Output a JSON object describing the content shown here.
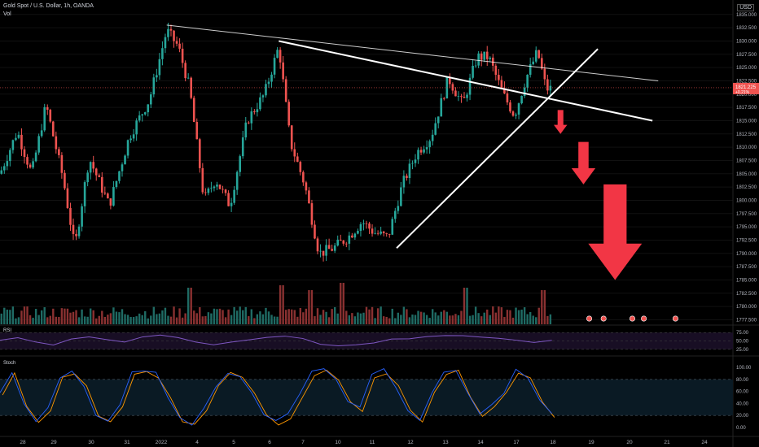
{
  "header": {
    "symbol": "Gold Spot / U.S. Dollar, 1h, OANDA",
    "volume_label": "Vol",
    "currency": "USD"
  },
  "price_panel": {
    "last_price": "1821.225",
    "change": "+0.21%"
  },
  "rsi_panel": {
    "label": "RSI",
    "levels": [
      "75.00",
      "50.00",
      "25.00"
    ]
  },
  "stoch_panel": {
    "label": "Stoch",
    "levels": [
      "100.00",
      "80.00",
      "60.00",
      "40.00",
      "20.00",
      "0.00"
    ]
  },
  "colors": {
    "up": "#26a69a",
    "down": "#ef5350",
    "rsi_line": "#7e57c2",
    "stoch_k": "#2962ff",
    "stoch_d": "#ff9800",
    "arrow": "#f23645",
    "trendline": "#ffffff"
  },
  "chart_data": {
    "type": "candlestick",
    "title": "Gold Spot / U.S. Dollar, 1h, OANDA",
    "y_ticks": [
      "1835.000",
      "1832.500",
      "1830.000",
      "1827.500",
      "1825.000",
      "1822.500",
      "1820.000",
      "1817.500",
      "1815.000",
      "1812.500",
      "1810.000",
      "1807.500",
      "1805.000",
      "1802.500",
      "1800.000",
      "1797.500",
      "1795.000",
      "1792.500",
      "1790.000",
      "1787.500",
      "1785.000",
      "1782.500",
      "1780.000",
      "1777.500"
    ],
    "ylim": [
      1776.5,
      1836.5
    ],
    "x_labels": [
      "28",
      "29",
      "30",
      "31",
      "2022",
      "4",
      "5",
      "6",
      "7",
      "10",
      "11",
      "12",
      "13",
      "14",
      "17",
      "18",
      "19",
      "20",
      "21",
      "24"
    ],
    "price_path": [
      {
        "t": 0,
        "p": 1805
      },
      {
        "t": 6,
        "p": 1813
      },
      {
        "t": 11,
        "p": 1805
      },
      {
        "t": 16,
        "p": 1818
      },
      {
        "t": 22,
        "p": 1804
      },
      {
        "t": 26,
        "p": 1791
      },
      {
        "t": 31,
        "p": 1808
      },
      {
        "t": 38,
        "p": 1799
      },
      {
        "t": 45,
        "p": 1812
      },
      {
        "t": 52,
        "p": 1819
      },
      {
        "t": 58,
        "p": 1832
      },
      {
        "t": 62,
        "p": 1829
      },
      {
        "t": 66,
        "p": 1821
      },
      {
        "t": 71,
        "p": 1800
      },
      {
        "t": 75,
        "p": 1804
      },
      {
        "t": 80,
        "p": 1799
      },
      {
        "t": 86,
        "p": 1815
      },
      {
        "t": 92,
        "p": 1820
      },
      {
        "t": 97,
        "p": 1829
      },
      {
        "t": 101,
        "p": 1811
      },
      {
        "t": 106,
        "p": 1803
      },
      {
        "t": 111,
        "p": 1790
      },
      {
        "t": 116,
        "p": 1791
      },
      {
        "t": 121,
        "p": 1793
      },
      {
        "t": 126,
        "p": 1796
      },
      {
        "t": 130,
        "p": 1794
      },
      {
        "t": 135,
        "p": 1793
      },
      {
        "t": 140,
        "p": 1803
      },
      {
        "t": 145,
        "p": 1809
      },
      {
        "t": 150,
        "p": 1812
      },
      {
        "t": 156,
        "p": 1823
      },
      {
        "t": 161,
        "p": 1818
      },
      {
        "t": 166,
        "p": 1827
      },
      {
        "t": 170,
        "p": 1827
      },
      {
        "t": 175,
        "p": 1820
      },
      {
        "t": 179,
        "p": 1816
      },
      {
        "t": 183,
        "p": 1823
      },
      {
        "t": 187,
        "p": 1828
      },
      {
        "t": 190,
        "p": 1821
      },
      {
        "t": 192,
        "p": 1821
      }
    ],
    "volume_spikes": [
      {
        "t": 66,
        "v": 0.75
      },
      {
        "t": 98,
        "v": 0.8
      },
      {
        "t": 108,
        "v": 0.7
      },
      {
        "t": 119,
        "v": 0.85
      },
      {
        "t": 162,
        "v": 0.75
      },
      {
        "t": 189,
        "v": 0.7
      }
    ],
    "rsi": [
      52,
      58,
      45,
      40,
      56,
      62,
      55,
      48,
      62,
      67,
      60,
      48,
      38,
      45,
      55,
      60,
      63,
      57,
      42,
      35,
      40,
      45,
      55,
      58,
      62,
      66,
      64,
      60,
      58,
      54,
      47,
      50
    ],
    "stoch": [
      55,
      92,
      40,
      12,
      30,
      85,
      95,
      70,
      20,
      10,
      35,
      90,
      96,
      88,
      50,
      15,
      8,
      30,
      70,
      92,
      88,
      60,
      25,
      10,
      20,
      55,
      90,
      96,
      80,
      45,
      30,
      85,
      95,
      70,
      30,
      15,
      60,
      90,
      96,
      55,
      20,
      35,
      60,
      95,
      85,
      45,
      20
    ],
    "annotations": [
      {
        "type": "trendline",
        "from": {
          "t": 58,
          "p": 1833
        },
        "to": {
          "t": 229,
          "p": 1822.5
        }
      },
      {
        "type": "trendline",
        "from": {
          "t": 97,
          "p": 1830
        },
        "to": {
          "t": 227,
          "p": 1815
        }
      },
      {
        "type": "trendline",
        "from": {
          "t": 138,
          "p": 1791
        },
        "to": {
          "t": 208,
          "p": 1828.5
        }
      },
      {
        "type": "arrow_down",
        "from": {
          "t": 195,
          "p": 1817
        },
        "to": {
          "t": 195,
          "p": 1812.5
        }
      },
      {
        "type": "arrow_down",
        "from": {
          "t": 203,
          "p": 1811
        },
        "to": {
          "t": 203,
          "p": 1803
        }
      },
      {
        "type": "arrow_down",
        "from": {
          "t": 214,
          "p": 1803
        },
        "to": {
          "t": 214,
          "p": 1785
        }
      }
    ],
    "grid": true
  }
}
